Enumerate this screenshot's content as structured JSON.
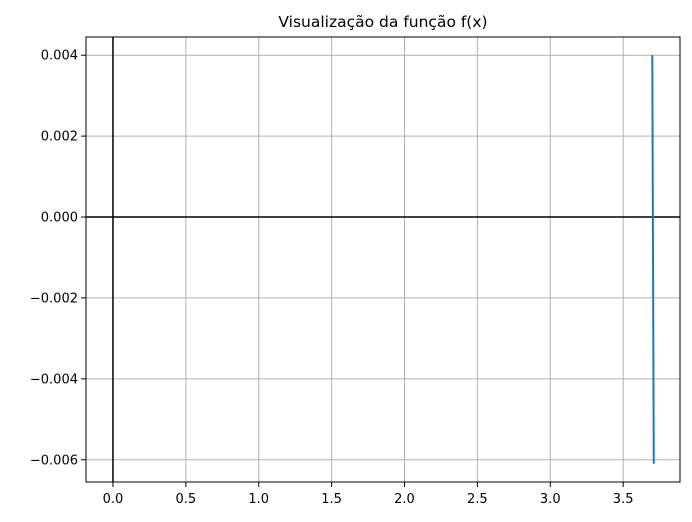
{
  "chart_data": {
    "type": "line",
    "title": "Visualização da função f(x)",
    "xlabel": "",
    "ylabel": "",
    "xlim": [
      -0.185,
      3.89
    ],
    "ylim": [
      -0.00655,
      0.00445
    ],
    "grid": true,
    "x_ticks": [
      0.0,
      0.5,
      1.0,
      1.5,
      2.0,
      2.5,
      3.0,
      3.5
    ],
    "x_tick_labels": [
      "0.0",
      "0.5",
      "1.0",
      "1.5",
      "2.0",
      "2.5",
      "3.0",
      "3.5"
    ],
    "y_ticks": [
      0.004,
      0.002,
      0.0,
      -0.002,
      -0.004,
      -0.006
    ],
    "y_tick_labels": [
      "0.004",
      "0.002",
      "0.000",
      "−0.002",
      "−0.004",
      "−0.006"
    ],
    "reference_lines": {
      "x": 0,
      "y": 0
    },
    "series": [
      {
        "color": "#1f77b4",
        "x": [
          3.7,
          3.71
        ],
        "y": [
          0.004,
          -0.0061
        ]
      }
    ],
    "colors": {
      "grid": "#b0b0b0",
      "axes": "#000000",
      "reference": "#000000"
    }
  }
}
